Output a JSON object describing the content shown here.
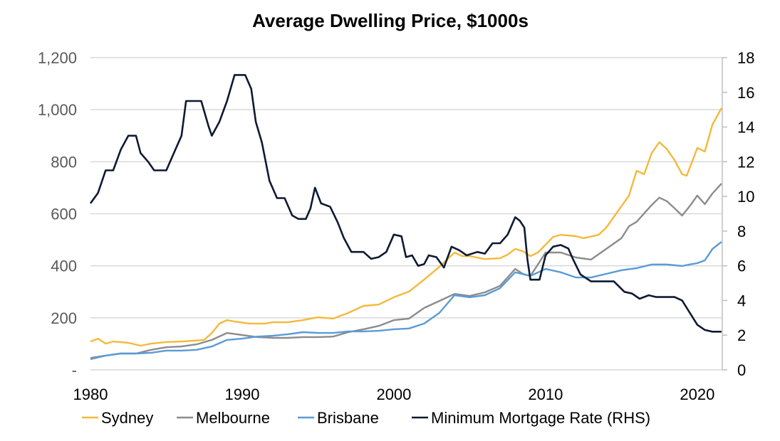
{
  "chart_data": {
    "type": "line",
    "title": "Average Dwelling Price, $1000s",
    "xlim": [
      1980,
      2021.65
    ],
    "x_ticks": [
      1980,
      1990,
      2000,
      2010,
      2020
    ],
    "x_tick_labels": [
      "1980",
      "1990",
      "2000",
      "2010",
      "2020"
    ],
    "y_left": {
      "lim": [
        0,
        1200
      ],
      "ticks": [
        0,
        200,
        400,
        600,
        800,
        1000,
        1200
      ],
      "tick_labels": [
        "-",
        "200",
        "400",
        "600",
        "800",
        "1,000",
        "1,200"
      ]
    },
    "y_right": {
      "lim": [
        0,
        18
      ],
      "ticks": [
        0,
        2,
        4,
        6,
        8,
        10,
        12,
        14,
        16,
        18
      ],
      "tick_labels": [
        "0",
        "2",
        "4",
        "6",
        "8",
        "10",
        "12",
        "14",
        "16",
        "18"
      ]
    },
    "grid": true,
    "legend_position": "bottom",
    "series": [
      {
        "name": "Sydney",
        "axis": "left",
        "color": "#F4B93A",
        "x": [
          1980,
          1980.5,
          1981,
          1981.5,
          1982.5,
          1983.3,
          1984,
          1985,
          1986,
          1987.5,
          1988,
          1988.5,
          1989,
          1989.5,
          1990.5,
          1991.5,
          1992,
          1993,
          1994,
          1995,
          1996,
          1997,
          1998,
          1999,
          2000,
          2001,
          2002,
          2003,
          2004,
          2004.5,
          2005,
          2006,
          2007,
          2007.5,
          2008,
          2008.5,
          2009,
          2009.5,
          2010.5,
          2011,
          2012,
          2012.5,
          2013.5,
          2014,
          2014.5,
          2015,
          2015.5,
          2016,
          2016.5,
          2017,
          2017.5,
          2018,
          2018.5,
          2019,
          2019.3,
          2019.7,
          2020,
          2020.5,
          2021,
          2021.6
        ],
        "y": [
          109,
          120,
          101,
          109,
          104,
          93,
          101,
          107,
          109,
          115,
          142,
          178,
          191,
          186,
          178,
          178,
          183,
          183,
          191,
          202,
          197,
          219,
          246,
          251,
          279,
          301,
          347,
          396,
          451,
          437,
          437,
          426,
          429,
          443,
          465,
          456,
          437,
          451,
          511,
          519,
          514,
          506,
          519,
          547,
          588,
          629,
          670,
          765,
          752,
          834,
          875,
          848,
          806,
          752,
          746,
          806,
          853,
          839,
          943,
          1006
        ]
      },
      {
        "name": "Melbourne",
        "axis": "left",
        "color": "#8C8C8C",
        "x": [
          1980,
          1981,
          1982,
          1983,
          1984,
          1985,
          1986,
          1987,
          1988,
          1989,
          1990,
          1991,
          1992,
          1993,
          1994,
          1995,
          1996,
          1997,
          1998,
          1999,
          2000,
          2001,
          2002,
          2003,
          2004,
          2005,
          2006,
          2007,
          2008,
          2008.5,
          2009,
          2009.5,
          2010,
          2011,
          2012,
          2013,
          2014,
          2015,
          2015.5,
          2016,
          2016.5,
          2017,
          2017.5,
          2018,
          2018.5,
          2019,
          2019.5,
          2020,
          2020.5,
          2021,
          2021.6
        ],
        "y": [
          46,
          55,
          63,
          63,
          77,
          87,
          90,
          98,
          115,
          142,
          134,
          126,
          123,
          123,
          126,
          126,
          128,
          145,
          156,
          169,
          191,
          197,
          238,
          265,
          292,
          284,
          298,
          323,
          388,
          369,
          361,
          405,
          451,
          451,
          432,
          424,
          465,
          506,
          552,
          569,
          601,
          634,
          662,
          648,
          621,
          593,
          629,
          670,
          637,
          678,
          716
        ]
      },
      {
        "name": "Brisbane",
        "axis": "left",
        "color": "#5B9BD5",
        "x": [
          1980,
          1981,
          1982,
          1983,
          1984,
          1985,
          1986,
          1987,
          1988,
          1989,
          1990,
          1991,
          1992,
          1993,
          1994,
          1995,
          1996,
          1997,
          1998,
          1999,
          2000,
          2001,
          2002,
          2003,
          2004,
          2005,
          2006,
          2007,
          2008,
          2009,
          2010,
          2011,
          2012,
          2013,
          2014,
          2015,
          2016,
          2017,
          2018,
          2019,
          2019.5,
          2020,
          2020.5,
          2021,
          2021.6
        ],
        "y": [
          41,
          55,
          63,
          63,
          66,
          74,
          74,
          77,
          90,
          115,
          120,
          128,
          131,
          137,
          145,
          142,
          142,
          148,
          148,
          150,
          156,
          159,
          178,
          219,
          287,
          279,
          287,
          314,
          375,
          361,
          388,
          375,
          355,
          355,
          369,
          383,
          391,
          405,
          405,
          399,
          405,
          410,
          421,
          465,
          492
        ]
      },
      {
        "name": "Minimum Mortgage Rate (RHS)",
        "axis": "right",
        "color": "#0E1A33",
        "x": [
          1980,
          1980.5,
          1981,
          1981.5,
          1982,
          1982.5,
          1983,
          1983.3,
          1983.8,
          1984.2,
          1985,
          1985.5,
          1986,
          1986.3,
          1987.3,
          1987.8,
          1988,
          1988.5,
          1989,
          1989.5,
          1990.2,
          1990.6,
          1990.9,
          1991.3,
          1991.8,
          1992.3,
          1992.8,
          1993.3,
          1993.7,
          1994.2,
          1994.5,
          1994.8,
          1995.2,
          1995.8,
          1996.3,
          1996.7,
          1997.2,
          1998,
          1998.5,
          1999,
          1999.5,
          2000,
          2000.5,
          2000.8,
          2001.2,
          2001.6,
          2002,
          2002.3,
          2002.8,
          2003.3,
          2003.8,
          2004.3,
          2004.8,
          2005.5,
          2006,
          2006.5,
          2007,
          2007.5,
          2008,
          2008.3,
          2008.6,
          2008.8,
          2009,
          2009.6,
          2010,
          2010.5,
          2011,
          2011.5,
          2011.8,
          2012.3,
          2013,
          2014.5,
          2015.2,
          2015.7,
          2016.2,
          2016.8,
          2017.3,
          2018.5,
          2019,
          2019.5,
          2020,
          2020.5,
          2021,
          2021.6
        ],
        "y": [
          9.6,
          10.2,
          11.5,
          11.5,
          12.7,
          13.5,
          13.5,
          12.5,
          12,
          11.5,
          11.5,
          12.5,
          13.5,
          15.5,
          15.5,
          14,
          13.5,
          14.3,
          15.5,
          17,
          17,
          16.2,
          14.3,
          13.1,
          10.9,
          9.9,
          9.9,
          8.9,
          8.7,
          8.7,
          9.3,
          10.5,
          9.6,
          9.4,
          8.5,
          7.6,
          6.8,
          6.8,
          6.4,
          6.5,
          6.8,
          7.8,
          7.7,
          6.5,
          6.6,
          6,
          6.1,
          6.6,
          6.5,
          5.9,
          7.1,
          6.9,
          6.6,
          6.8,
          6.7,
          7.3,
          7.3,
          7.8,
          8.8,
          8.6,
          8.2,
          6.4,
          5.2,
          5.2,
          6.6,
          7.1,
          7.2,
          7,
          6.4,
          5.5,
          5.1,
          5.1,
          4.5,
          4.4,
          4.1,
          4.3,
          4.2,
          4.2,
          4.0,
          3.3,
          2.6,
          2.3,
          2.2,
          2.2
        ]
      }
    ]
  }
}
